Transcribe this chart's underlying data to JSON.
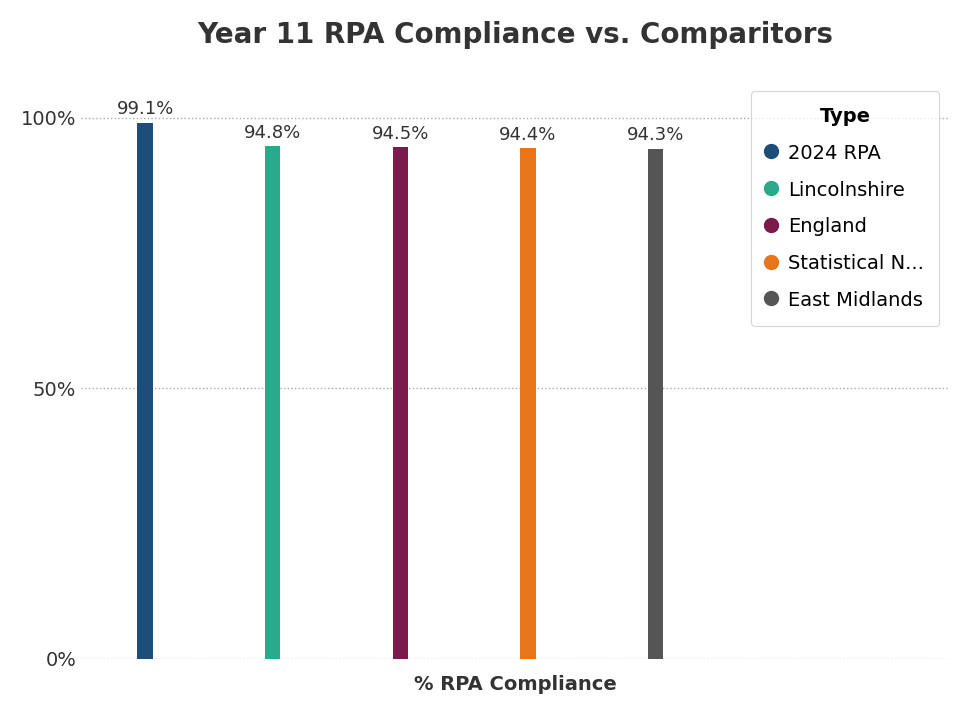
{
  "title": "Year 11 RPA Compliance vs. Comparitors",
  "xlabel": "% RPA Compliance",
  "ylabel": "",
  "categories": [
    "2024 RPA",
    "Lincolnshire",
    "England",
    "Statistical N...",
    "East Midlands"
  ],
  "values": [
    99.1,
    94.8,
    94.5,
    94.4,
    94.3
  ],
  "bar_colors": [
    "#1d4e7a",
    "#2aaa8a",
    "#7b1a4b",
    "#e8751a",
    "#555555"
  ],
  "legend_colors": [
    "#1d4e7a",
    "#2aaa8a",
    "#7b1a4b",
    "#e8751a",
    "#555555"
  ],
  "legend_labels": [
    "2024 RPA",
    "Lincolnshire",
    "England",
    "Statistical N...",
    "East Midlands"
  ],
  "legend_title": "Type",
  "yticks": [
    0,
    50,
    100
  ],
  "ytick_labels": [
    "0%",
    "50%",
    "100%"
  ],
  "ylim": [
    0,
    110
  ],
  "background_color": "#ffffff",
  "title_fontsize": 20,
  "label_fontsize": 14,
  "tick_fontsize": 14,
  "annotation_fontsize": 13,
  "bar_width": 0.12
}
